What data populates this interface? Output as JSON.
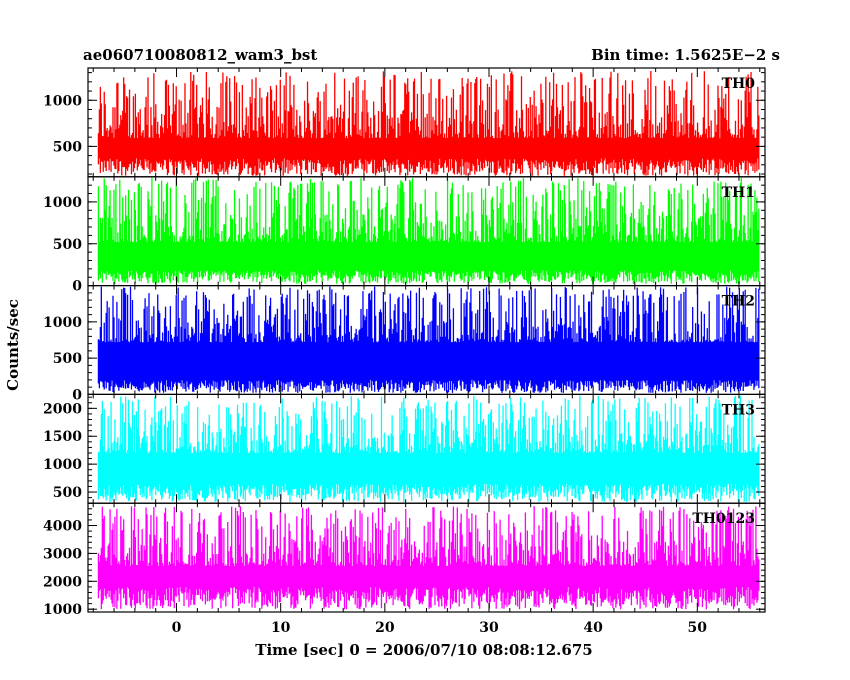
{
  "chart_data": {
    "type": "line",
    "title": "ae060710080812_wam3_bst",
    "subtitle": "Bin time: 1.5625E−2 s",
    "xlabel": "Time [sec] 0 = 2006/07/10 08:08:12.675",
    "ylabel": "Counts/sec",
    "xlim": [
      -8.5,
      56.5
    ],
    "data_xrange": [
      -7.5,
      56
    ],
    "x_ticks": [
      0,
      10,
      20,
      30,
      40,
      50
    ],
    "x_tick_labels": [
      "0",
      "10",
      "20",
      "30",
      "40",
      "50"
    ],
    "panels": [
      {
        "name": "TH0",
        "color": "#ff0000",
        "ylim": [
          170,
          1350
        ],
        "y_ticks": [
          500,
          1000
        ],
        "y_tick_labels": [
          "500",
          "1000"
        ],
        "baseline_low": 180,
        "baseline_high": 370,
        "mean": 590,
        "peak_max": 1320
      },
      {
        "name": "TH1",
        "color": "#00ff00",
        "ylim": [
          0,
          1300
        ],
        "y_ticks": [
          0,
          500,
          1000
        ],
        "y_tick_labels": [
          "0",
          "500",
          "1000"
        ],
        "baseline_low": 20,
        "baseline_high": 180,
        "mean": 520,
        "peak_max": 1290
      },
      {
        "name": "TH2",
        "color": "#0000ff",
        "ylim": [
          0,
          1500
        ],
        "y_ticks": [
          0,
          500,
          1000
        ],
        "y_tick_labels": [
          "0",
          "500",
          "1000"
        ],
        "baseline_low": 20,
        "baseline_high": 200,
        "mean": 720,
        "peak_max": 1490
      },
      {
        "name": "TH3",
        "color": "#00ffff",
        "ylim": [
          300,
          2250
        ],
        "y_ticks": [
          500,
          1000,
          1500,
          2000
        ],
        "y_tick_labels": [
          "500",
          "1000",
          "1500",
          "2000"
        ],
        "baseline_low": 320,
        "baseline_high": 650,
        "mean": 1200,
        "peak_max": 2230
      },
      {
        "name": "TH0123",
        "color": "#ff00ff",
        "ylim": [
          900,
          4800
        ],
        "y_ticks": [
          1000,
          2000,
          3000,
          4000
        ],
        "y_tick_labels": [
          "1000",
          "2000",
          "3000",
          "4000"
        ],
        "baseline_low": 1000,
        "baseline_high": 1800,
        "mean": 2550,
        "peak_max": 4700
      }
    ]
  }
}
